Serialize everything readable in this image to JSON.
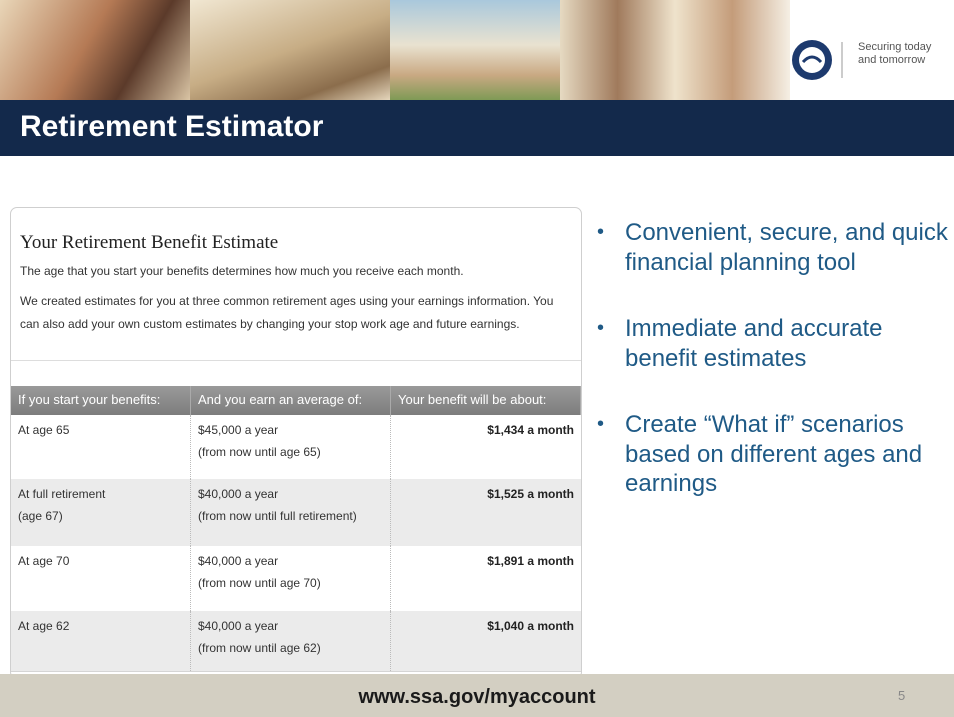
{
  "header": {
    "tagline": "Securing today and tomorrow",
    "title": "Retirement Estimator"
  },
  "panel": {
    "heading": "Your Retirement Benefit Estimate",
    "paragraphs": [
      "The age that you start your benefits determines how much you receive each month.",
      "We created estimates for you at three common retirement ages using your earnings information. You can also add your own custom estimates by changing your stop work age and future earnings."
    ]
  },
  "table": {
    "columns": [
      "If you start your benefits:",
      "And you earn an average of:",
      "Your benefit will be about:"
    ],
    "rows": [
      {
        "age": [
          "At age 65"
        ],
        "earn": [
          "$45,000 a year",
          "(from now until age 65)"
        ],
        "benefit": "$1,434 a month"
      },
      {
        "age": [
          "At full retirement",
          "(age 67)"
        ],
        "earn": [
          "$40,000 a year",
          "(from now until full retirement)"
        ],
        "benefit": "$1,525 a month"
      },
      {
        "age": [
          "At age 70"
        ],
        "earn": [
          "$40,000 a year",
          "(from now until age 70)"
        ],
        "benefit": "$1,891 a month"
      },
      {
        "age": [
          "At age 62"
        ],
        "earn": [
          "$40,000 a year",
          "(from now until age 62)"
        ],
        "benefit": "$1,040 a month"
      }
    ]
  },
  "bullets": [
    "Convenient, secure, and quick financial planning tool",
    "Immediate and accurate benefit estimates",
    "Create “What if” scenarios based on different ages and earnings"
  ],
  "footer": {
    "url": "www.ssa.gov/myaccount",
    "page": "5"
  }
}
